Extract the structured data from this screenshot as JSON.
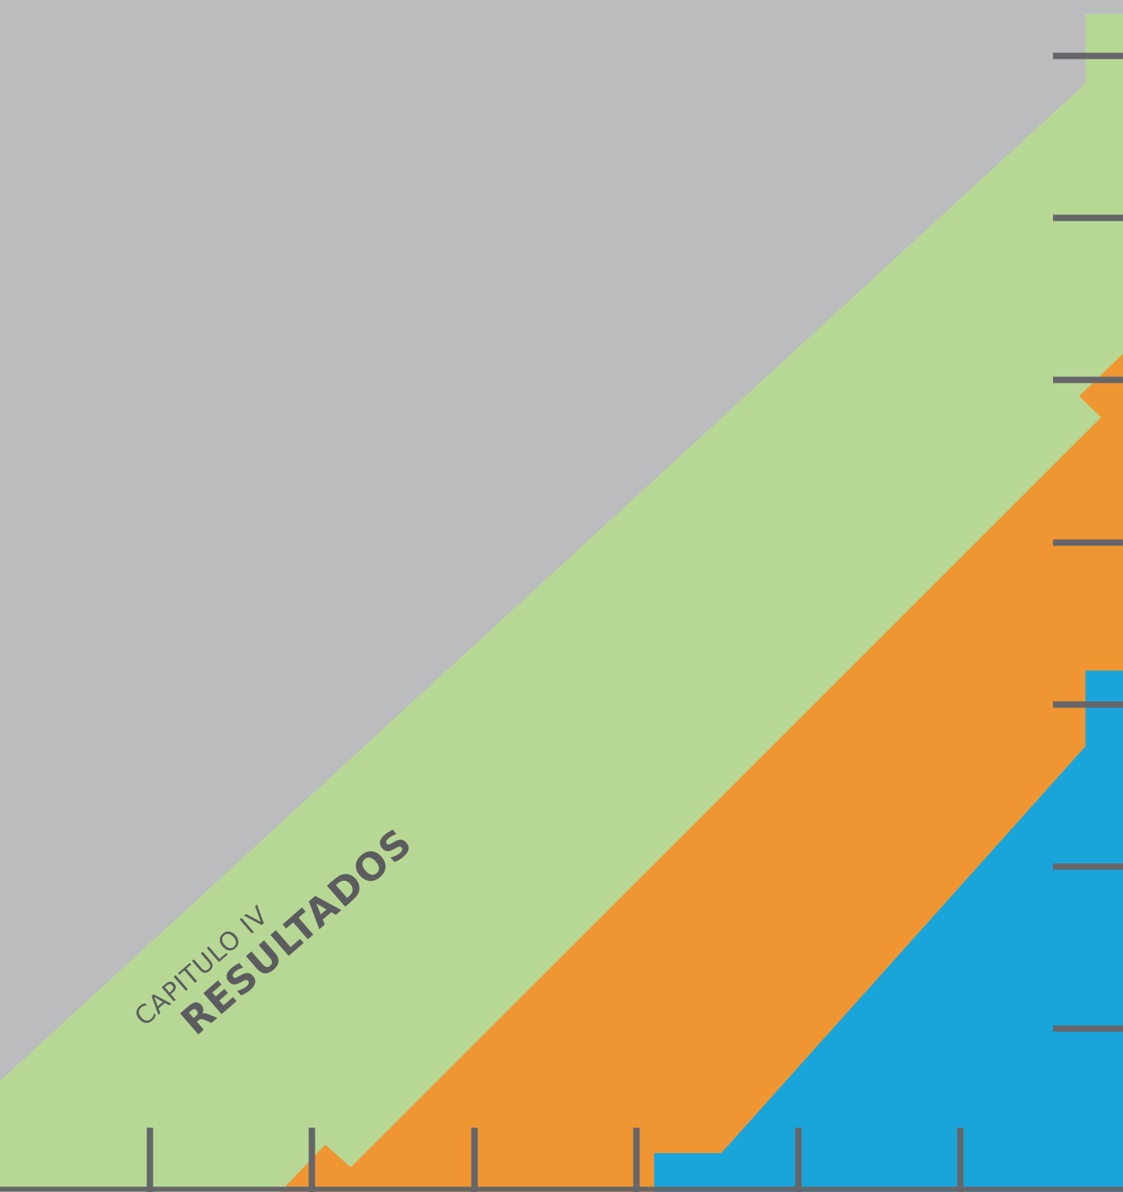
{
  "cover": {
    "chapter_label": "CAPITULO IV",
    "section_title": "RESULTADOS"
  },
  "colors": {
    "background": "#bbbcbe",
    "green_band": "#b6d894",
    "orange_band": "#ef9632",
    "blue_band": "#1aa5da",
    "ticks": "#66666a",
    "text": "#5c5c60"
  }
}
